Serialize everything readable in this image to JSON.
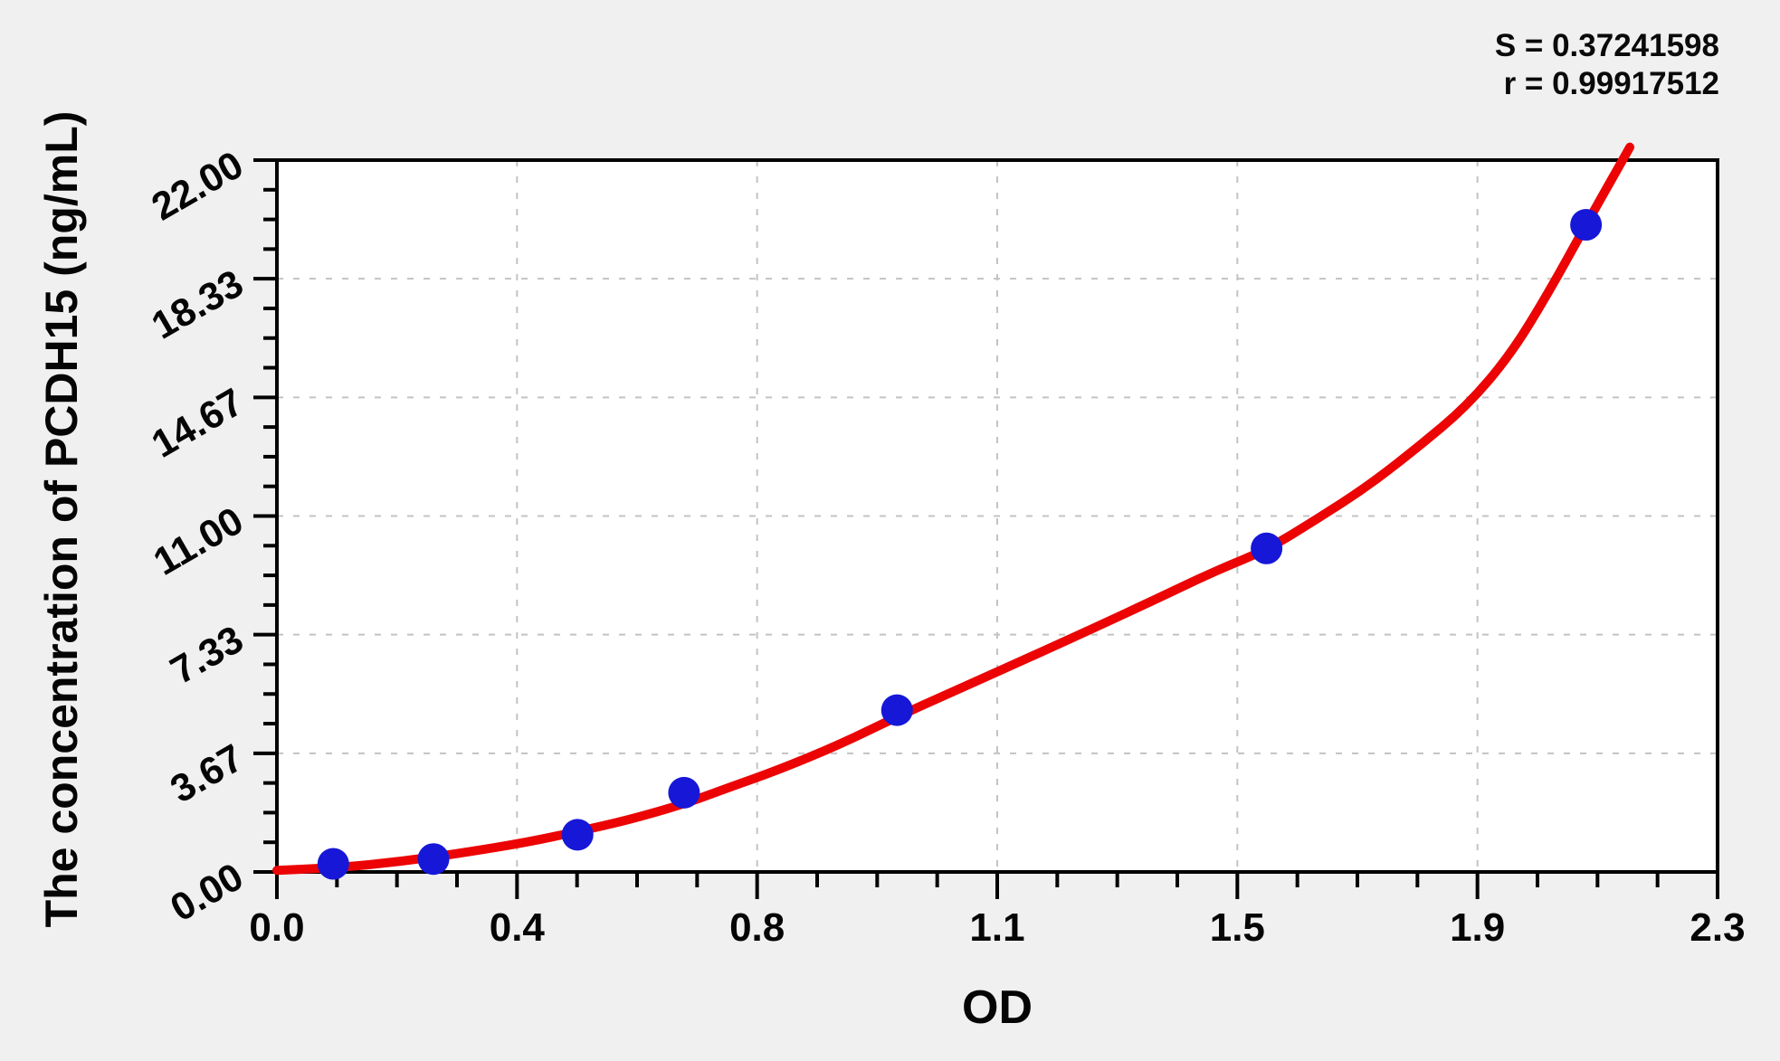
{
  "stats": {
    "s_line": "S = 0.37241598",
    "r_line": "r = 0.99917512"
  },
  "chart_data": {
    "type": "scatter",
    "xlabel": "OD",
    "ylabel": "The concentration of PCDH15 (ng/mL)",
    "xlim": [
      0.0,
      2.3
    ],
    "ylim": [
      0.0,
      22.0
    ],
    "x_tick_labels": [
      "0.0",
      "0.4",
      "0.8",
      "1.1",
      "1.5",
      "1.9",
      "2.3"
    ],
    "y_tick_labels": [
      "0.00",
      "3.67",
      "7.33",
      "11.00",
      "14.67",
      "18.33",
      "22.00"
    ],
    "minor_divisions_per_interval": 4,
    "grid": "dashed at major ticks",
    "legend_position": "none",
    "annotations": [
      "S = 0.37241598",
      "r = 0.99917512"
    ],
    "series": [
      {
        "name": "standard points",
        "type": "scatter",
        "x": [
          0.09,
          0.25,
          0.48,
          0.65,
          0.99,
          1.58,
          2.09
        ],
        "y": [
          0.25,
          0.4,
          1.15,
          2.45,
          5.0,
          10.0,
          20.0
        ]
      },
      {
        "name": "fitted curve",
        "type": "line",
        "x": [
          0.0,
          0.1,
          0.2,
          0.3,
          0.4,
          0.48,
          0.56,
          0.65,
          0.72,
          0.8,
          0.9,
          0.99,
          1.1,
          1.2,
          1.3,
          1.4,
          1.5,
          1.58,
          1.66,
          1.74,
          1.82,
          1.9,
          1.97,
          2.03,
          2.09,
          2.16
        ],
        "y": [
          0.05,
          0.13,
          0.33,
          0.6,
          0.92,
          1.25,
          1.6,
          2.1,
          2.6,
          3.15,
          3.95,
          4.8,
          5.75,
          6.62,
          7.5,
          8.4,
          9.32,
          9.95,
          10.9,
          11.9,
          13.1,
          14.4,
          16.0,
          17.9,
          20.0,
          22.4
        ]
      }
    ],
    "colors": {
      "points": "#1717d8",
      "curve": "#ec0404",
      "grid": "#c3c3c3",
      "frame": "#000000",
      "tick": "#000000",
      "plot_bg": "#ffffff",
      "page_bg": "#f0f0f0",
      "text": "#050505"
    }
  }
}
